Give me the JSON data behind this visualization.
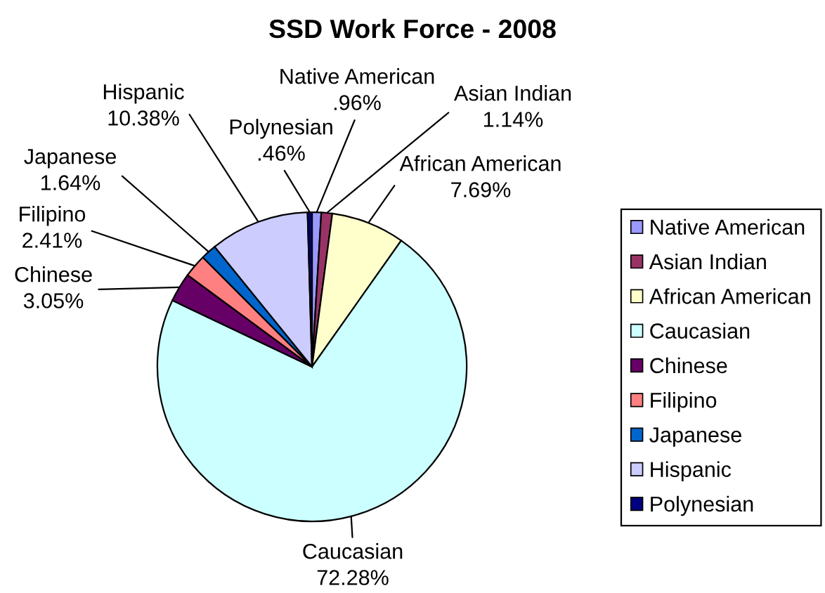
{
  "chart_data": {
    "type": "pie",
    "title": "SSD Work Force - 2008",
    "categories": [
      "Native American",
      "Asian Indian",
      "African American",
      "Caucasian",
      "Chinese",
      "Filipino",
      "Japanese",
      "Hispanic",
      "Polynesian"
    ],
    "values": [
      0.96,
      1.14,
      7.69,
      72.28,
      3.05,
      2.41,
      1.64,
      10.38,
      0.46
    ],
    "value_labels": [
      ".96%",
      "1.14%",
      "7.69%",
      "72.28%",
      "3.05%",
      "2.41%",
      "1.64%",
      "10.38%",
      ".46%"
    ],
    "colors": [
      "#9999ff",
      "#993366",
      "#ffffcc",
      "#ccffff",
      "#660066",
      "#ff8080",
      "#0066cc",
      "#ccccff",
      "#000080"
    ],
    "legend": "right"
  }
}
